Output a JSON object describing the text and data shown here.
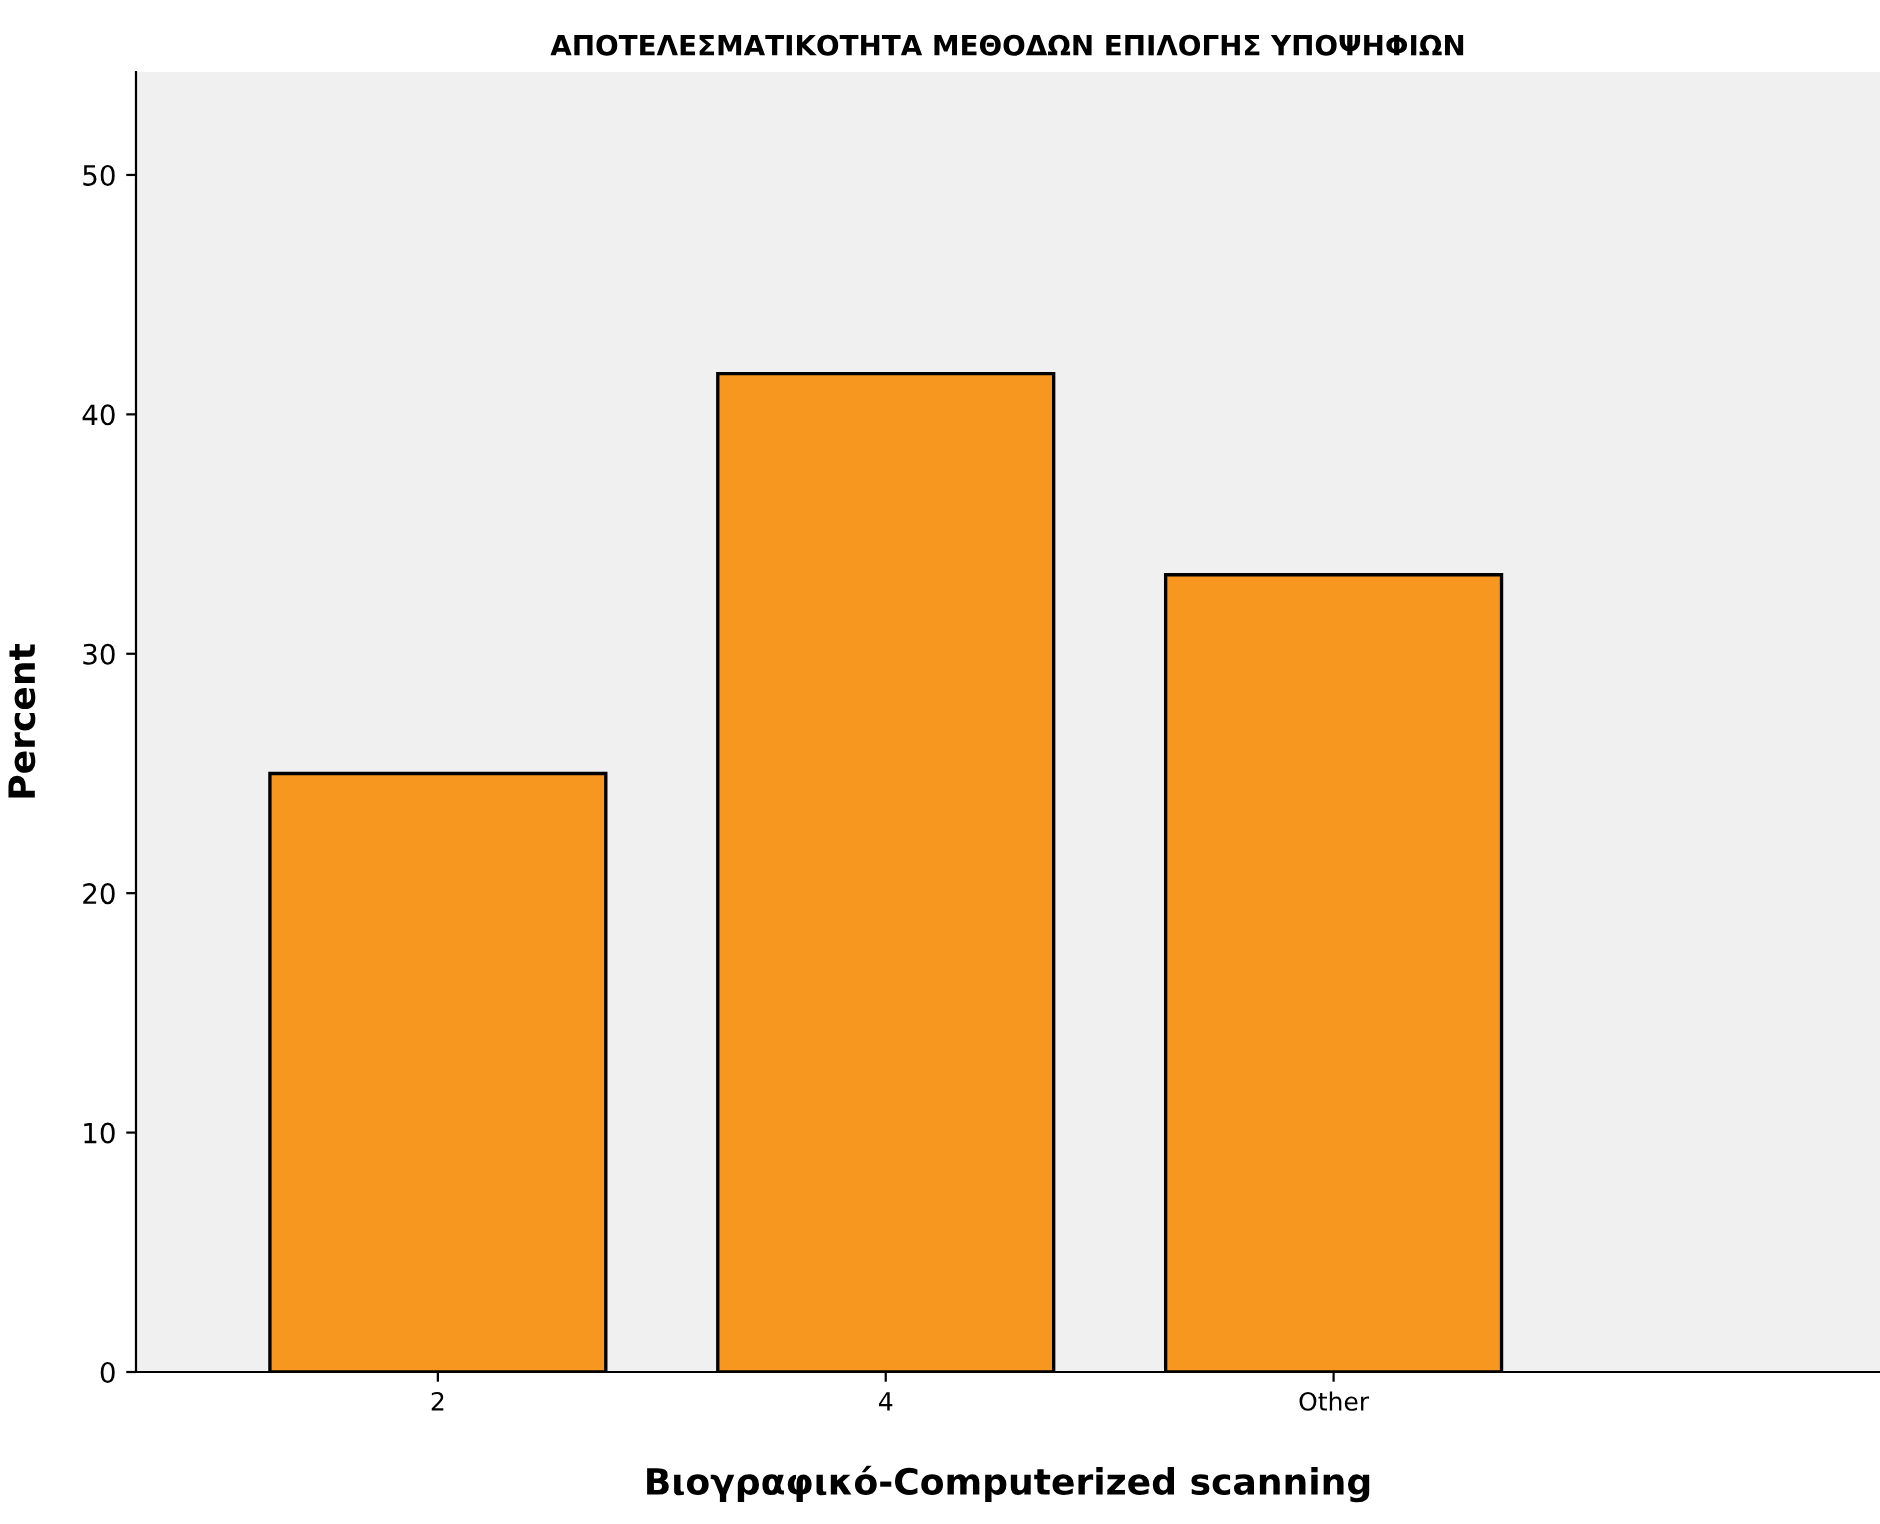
{
  "chart_data": {
    "type": "bar",
    "title": "ΑΠΟΤΕΛΕΣΜΑΤΙΚΟΤΗΤΑ ΜΕΘΟΔΩΝ ΕΠΙΛΟΓΗΣ ΥΠΟΨΗΦΙΩΝ",
    "xlabel": "Βιογραφικό-Computerized scanning",
    "ylabel": "Percent",
    "categories": [
      "2",
      "4",
      "Other"
    ],
    "values": [
      25,
      41.7,
      33.3
    ],
    "color": "#f7971f",
    "ylim": [
      0,
      54.3
    ],
    "yticks": [
      0,
      10,
      20,
      30,
      40,
      50
    ],
    "grid": false,
    "legend": false
  }
}
